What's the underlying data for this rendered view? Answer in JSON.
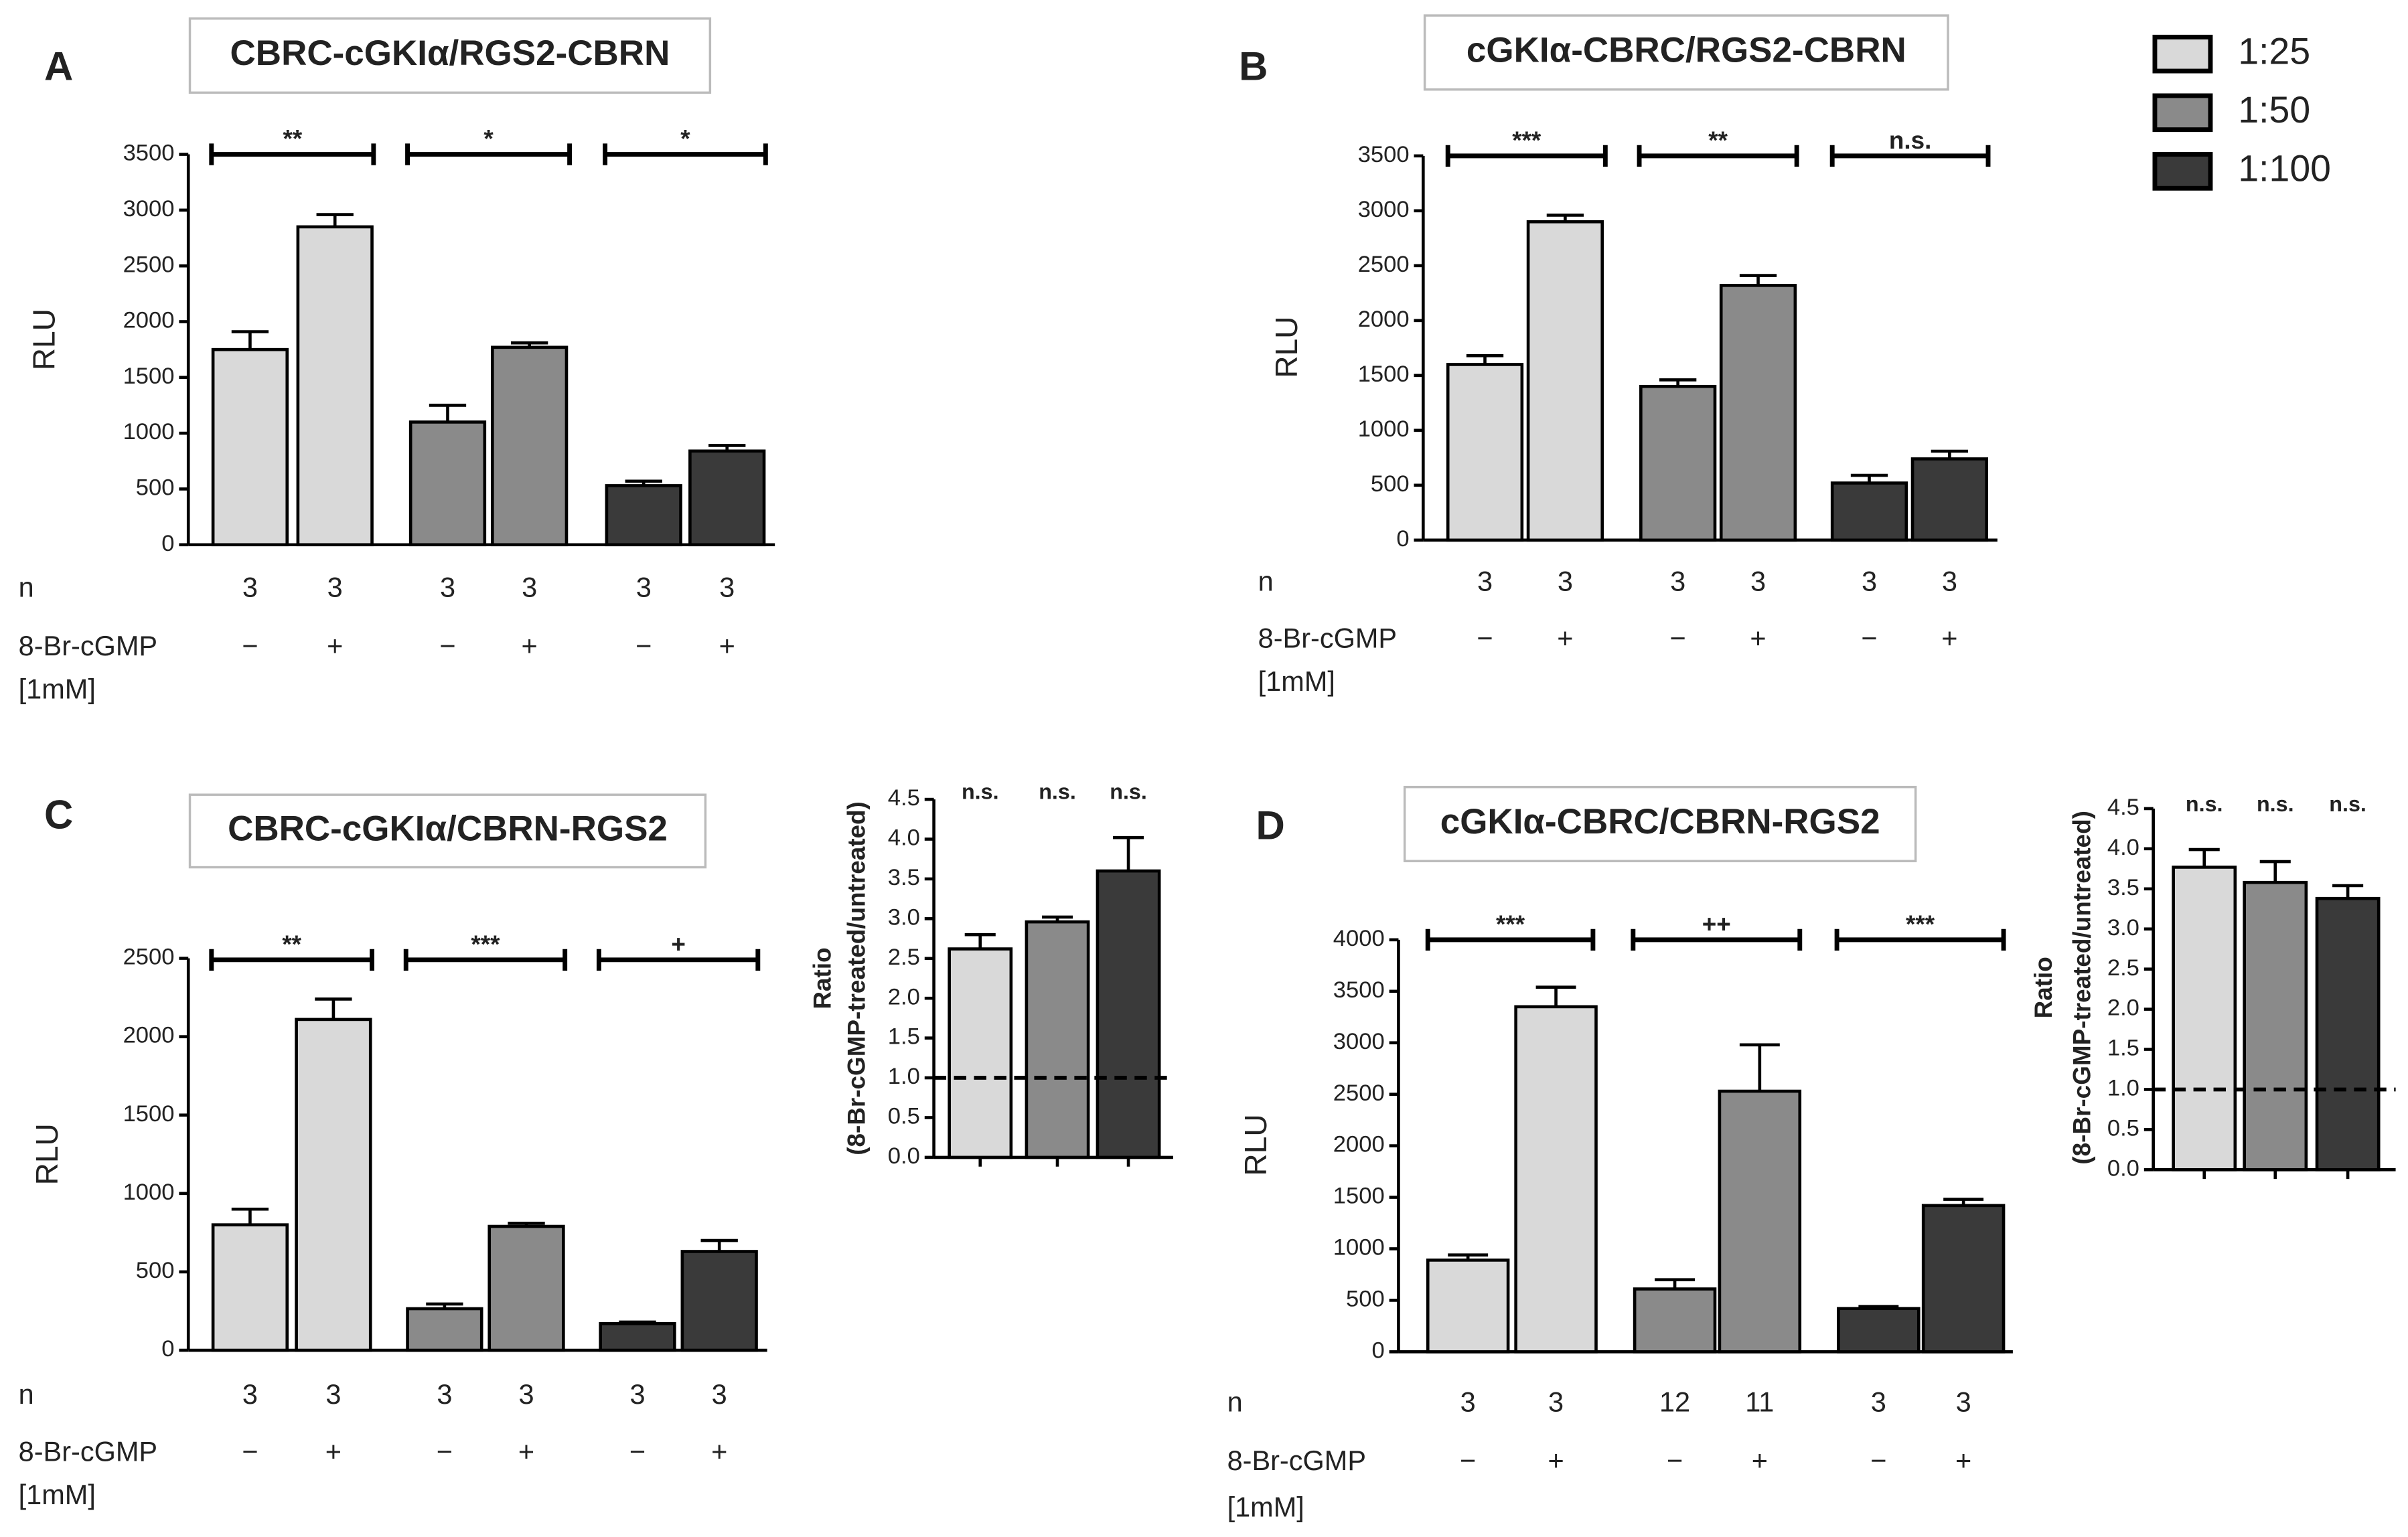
{
  "chart_data": [
    {
      "type": "bar",
      "panel": "A",
      "title": "CBRC-cGKIα/RGS2-CBRN",
      "y_label": "RLU",
      "ylim": [
        0,
        3500
      ],
      "yticks": [
        0,
        500,
        1000,
        1500,
        2000,
        2500,
        3000,
        3500
      ],
      "categories": [
        "−",
        "+"
      ],
      "n_label": "n",
      "treatment_label": "8-Br-cGMP",
      "treatment_unit": "[1mM]",
      "significance": [
        "**",
        "*",
        "*"
      ],
      "series": [
        {
          "name": "1:25",
          "color": "#d9d9d9",
          "values": [
            1750,
            2850
          ],
          "errors": [
            160,
            110
          ],
          "n": [
            3,
            3
          ]
        },
        {
          "name": "1:50",
          "color": "#8a8a8a",
          "values": [
            1100,
            1770
          ],
          "errors": [
            150,
            40
          ],
          "n": [
            3,
            3
          ]
        },
        {
          "name": "1:100",
          "color": "#3a3a3a",
          "values": [
            530,
            840
          ],
          "errors": [
            40,
            50
          ],
          "n": [
            3,
            3
          ]
        }
      ]
    },
    {
      "type": "bar",
      "panel": "B",
      "title": "cGKIα-CBRC/RGS2-CBRN",
      "y_label": "RLU",
      "ylim": [
        0,
        3500
      ],
      "yticks": [
        0,
        500,
        1000,
        1500,
        2000,
        2500,
        3000,
        3500
      ],
      "categories": [
        "−",
        "+"
      ],
      "n_label": "n",
      "treatment_label": "8-Br-cGMP",
      "treatment_unit": "[1mM]",
      "significance": [
        "***",
        "**",
        "n.s."
      ],
      "series": [
        {
          "color": "#d9d9d9",
          "values": [
            1600,
            2900
          ],
          "errors": [
            80,
            60
          ],
          "n": [
            3,
            3
          ]
        },
        {
          "color": "#8a8a8a",
          "values": [
            1400,
            2320
          ],
          "errors": [
            60,
            90
          ],
          "n": [
            3,
            3
          ]
        },
        {
          "color": "#3a3a3a",
          "values": [
            520,
            740
          ],
          "errors": [
            70,
            70
          ],
          "n": [
            3,
            3
          ]
        }
      ]
    },
    {
      "type": "bar",
      "panel": "C",
      "title": "CBRC-cGKIα/CBRN-RGS2",
      "y_label": "RLU",
      "ylim": [
        0,
        2500
      ],
      "yticks": [
        0,
        500,
        1000,
        1500,
        2000,
        2500
      ],
      "categories": [
        "−",
        "+"
      ],
      "n_label": "n",
      "treatment_label": "8-Br-cGMP",
      "treatment_unit": "[1mM]",
      "significance": [
        "**",
        "***",
        "+"
      ],
      "series": [
        {
          "color": "#d9d9d9",
          "values": [
            800,
            2110
          ],
          "errors": [
            100,
            130
          ],
          "n": [
            3,
            3
          ]
        },
        {
          "color": "#8a8a8a",
          "values": [
            265,
            790
          ],
          "errors": [
            30,
            20
          ],
          "n": [
            3,
            3
          ]
        },
        {
          "color": "#3a3a3a",
          "values": [
            170,
            630
          ],
          "errors": [
            10,
            70
          ],
          "n": [
            3,
            3
          ]
        }
      ]
    },
    {
      "type": "bar",
      "y_label": [
        "Ratio",
        "(8-Br-cGMP-treated/untreated)"
      ],
      "ylim": [
        0,
        4.5
      ],
      "yticks": [
        {
          "value": 0,
          "label": "0.0"
        },
        {
          "value": 0.5,
          "label": "0.5"
        },
        {
          "value": 1,
          "label": "1.0"
        },
        {
          "value": 1.5,
          "label": "1.5"
        },
        {
          "value": 2,
          "label": "2.0"
        },
        {
          "value": 2.5,
          "label": "2.5"
        },
        {
          "value": 3,
          "label": "3.0"
        },
        {
          "value": 3.5,
          "label": "3.5"
        },
        {
          "value": 4,
          "label": "4.0"
        },
        {
          "value": 4.5,
          "label": "4.5"
        }
      ],
      "reference_line": 1,
      "significance": [
        "n.s.",
        "n.s.",
        "n.s."
      ],
      "values": [
        2.62,
        2.96,
        3.6
      ],
      "errors": [
        0.18,
        0.06,
        0.42
      ],
      "colors": [
        "#d9d9d9",
        "#8a8a8a",
        "#3a3a3a"
      ]
    },
    {
      "type": "bar",
      "panel": "D",
      "title": "cGKIα-CBRC/CBRN-RGS2",
      "y_label": "RLU",
      "ylim": [
        0,
        4000
      ],
      "yticks": [
        0,
        500,
        1000,
        1500,
        2000,
        2500,
        3000,
        3500,
        4000
      ],
      "categories": [
        "−",
        "+"
      ],
      "n_label": "n",
      "treatment_label": "8-Br-cGMP",
      "treatment_unit": "[1mM]",
      "significance": [
        "***",
        "++",
        "***"
      ],
      "series": [
        {
          "color": "#d9d9d9",
          "values": [
            890,
            3350
          ],
          "errors": [
            50,
            190
          ],
          "n": [
            3,
            3
          ]
        },
        {
          "color": "#8a8a8a",
          "values": [
            610,
            2530
          ],
          "errors": [
            90,
            450
          ],
          "n": [
            12,
            11
          ]
        },
        {
          "color": "#3a3a3a",
          "values": [
            420,
            1420
          ],
          "errors": [
            20,
            60
          ],
          "n": [
            3,
            3
          ]
        }
      ]
    },
    {
      "type": "bar",
      "y_label": [
        "Ratio",
        "(8-Br-cGMP-treated/untreated)"
      ],
      "ylim": [
        0,
        4.5
      ],
      "yticks": [
        {
          "value": 0,
          "label": "0.0"
        },
        {
          "value": 0.5,
          "label": "0.5"
        },
        {
          "value": 1,
          "label": "1.0"
        },
        {
          "value": 1.5,
          "label": "1.5"
        },
        {
          "value": 2,
          "label": "2.0"
        },
        {
          "value": 2.5,
          "label": "2.5"
        },
        {
          "value": 3,
          "label": "3.0"
        },
        {
          "value": 3.5,
          "label": "3.5"
        },
        {
          "value": 4,
          "label": "4.0"
        },
        {
          "value": 4.5,
          "label": "4.5"
        }
      ],
      "reference_line": 1,
      "significance": [
        "n.s.",
        "n.s.",
        "n.s."
      ],
      "values": [
        3.77,
        3.58,
        3.38
      ],
      "errors": [
        0.22,
        0.26,
        0.16
      ],
      "colors": [
        "#d9d9d9",
        "#8a8a8a",
        "#3a3a3a"
      ]
    }
  ]
}
